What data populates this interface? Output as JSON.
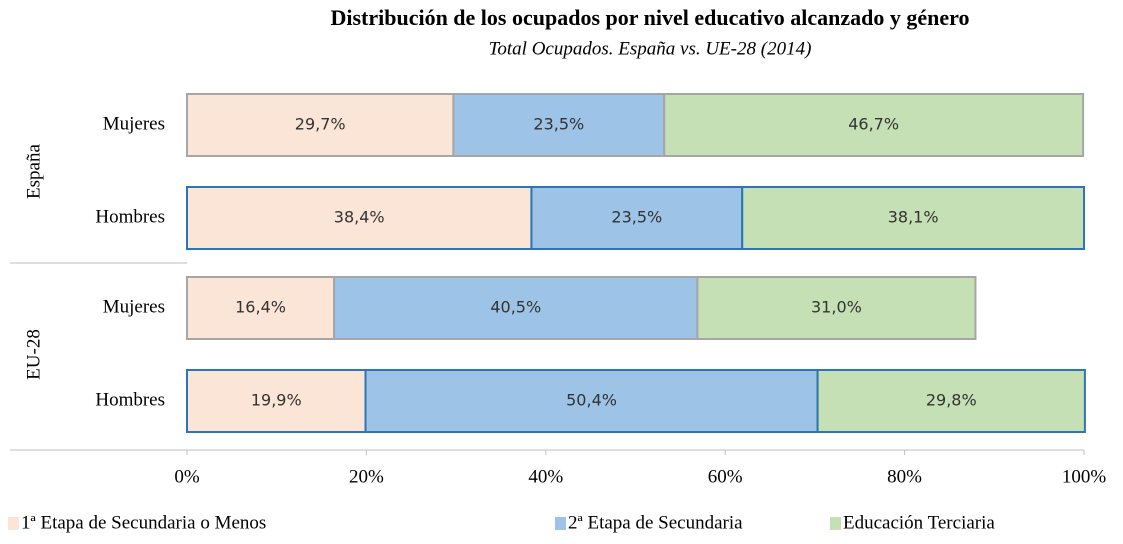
{
  "chart_data": {
    "type": "stacked_barh",
    "title": "Distribución de los ocupados por nivel educativo alcanzado y género",
    "subtitle": "Total Ocupados. España vs. UE-28 (2014)",
    "groups": [
      "España",
      "EU-28"
    ],
    "categories": [
      "Mujeres",
      "Hombres",
      "Mujeres",
      "Hombres"
    ],
    "series": [
      {
        "name": "1ª Etapa de Secundaria o Menos",
        "color": "#fbe5d6",
        "values": [
          29.7,
          38.4,
          16.4,
          19.9
        ],
        "value_labels": [
          "29,7%",
          "38,4%",
          "16,4%",
          "19,9%"
        ]
      },
      {
        "name": "2ª Etapa de Secundaria",
        "color": "#9dc3e6",
        "values": [
          23.5,
          23.5,
          40.5,
          50.4
        ],
        "value_labels": [
          "23,5%",
          "23,5%",
          "40,5%",
          "50,4%"
        ]
      },
      {
        "name": "Educación Terciaria",
        "color": "#c5e0b4",
        "values": [
          46.7,
          38.1,
          31.0,
          29.8
        ],
        "value_labels": [
          "46,7%",
          "38,1%",
          "31,0%",
          "29,8%"
        ]
      }
    ],
    "xlim": [
      0,
      100
    ],
    "xticks": [
      {
        "value": 0,
        "label": "0%"
      },
      {
        "value": 20,
        "label": "20%"
      },
      {
        "value": 40,
        "label": "40%"
      },
      {
        "value": 60,
        "label": "60%"
      },
      {
        "value": 80,
        "label": "80%"
      },
      {
        "value": 100,
        "label": "100%"
      }
    ],
    "legend": "bottom"
  }
}
